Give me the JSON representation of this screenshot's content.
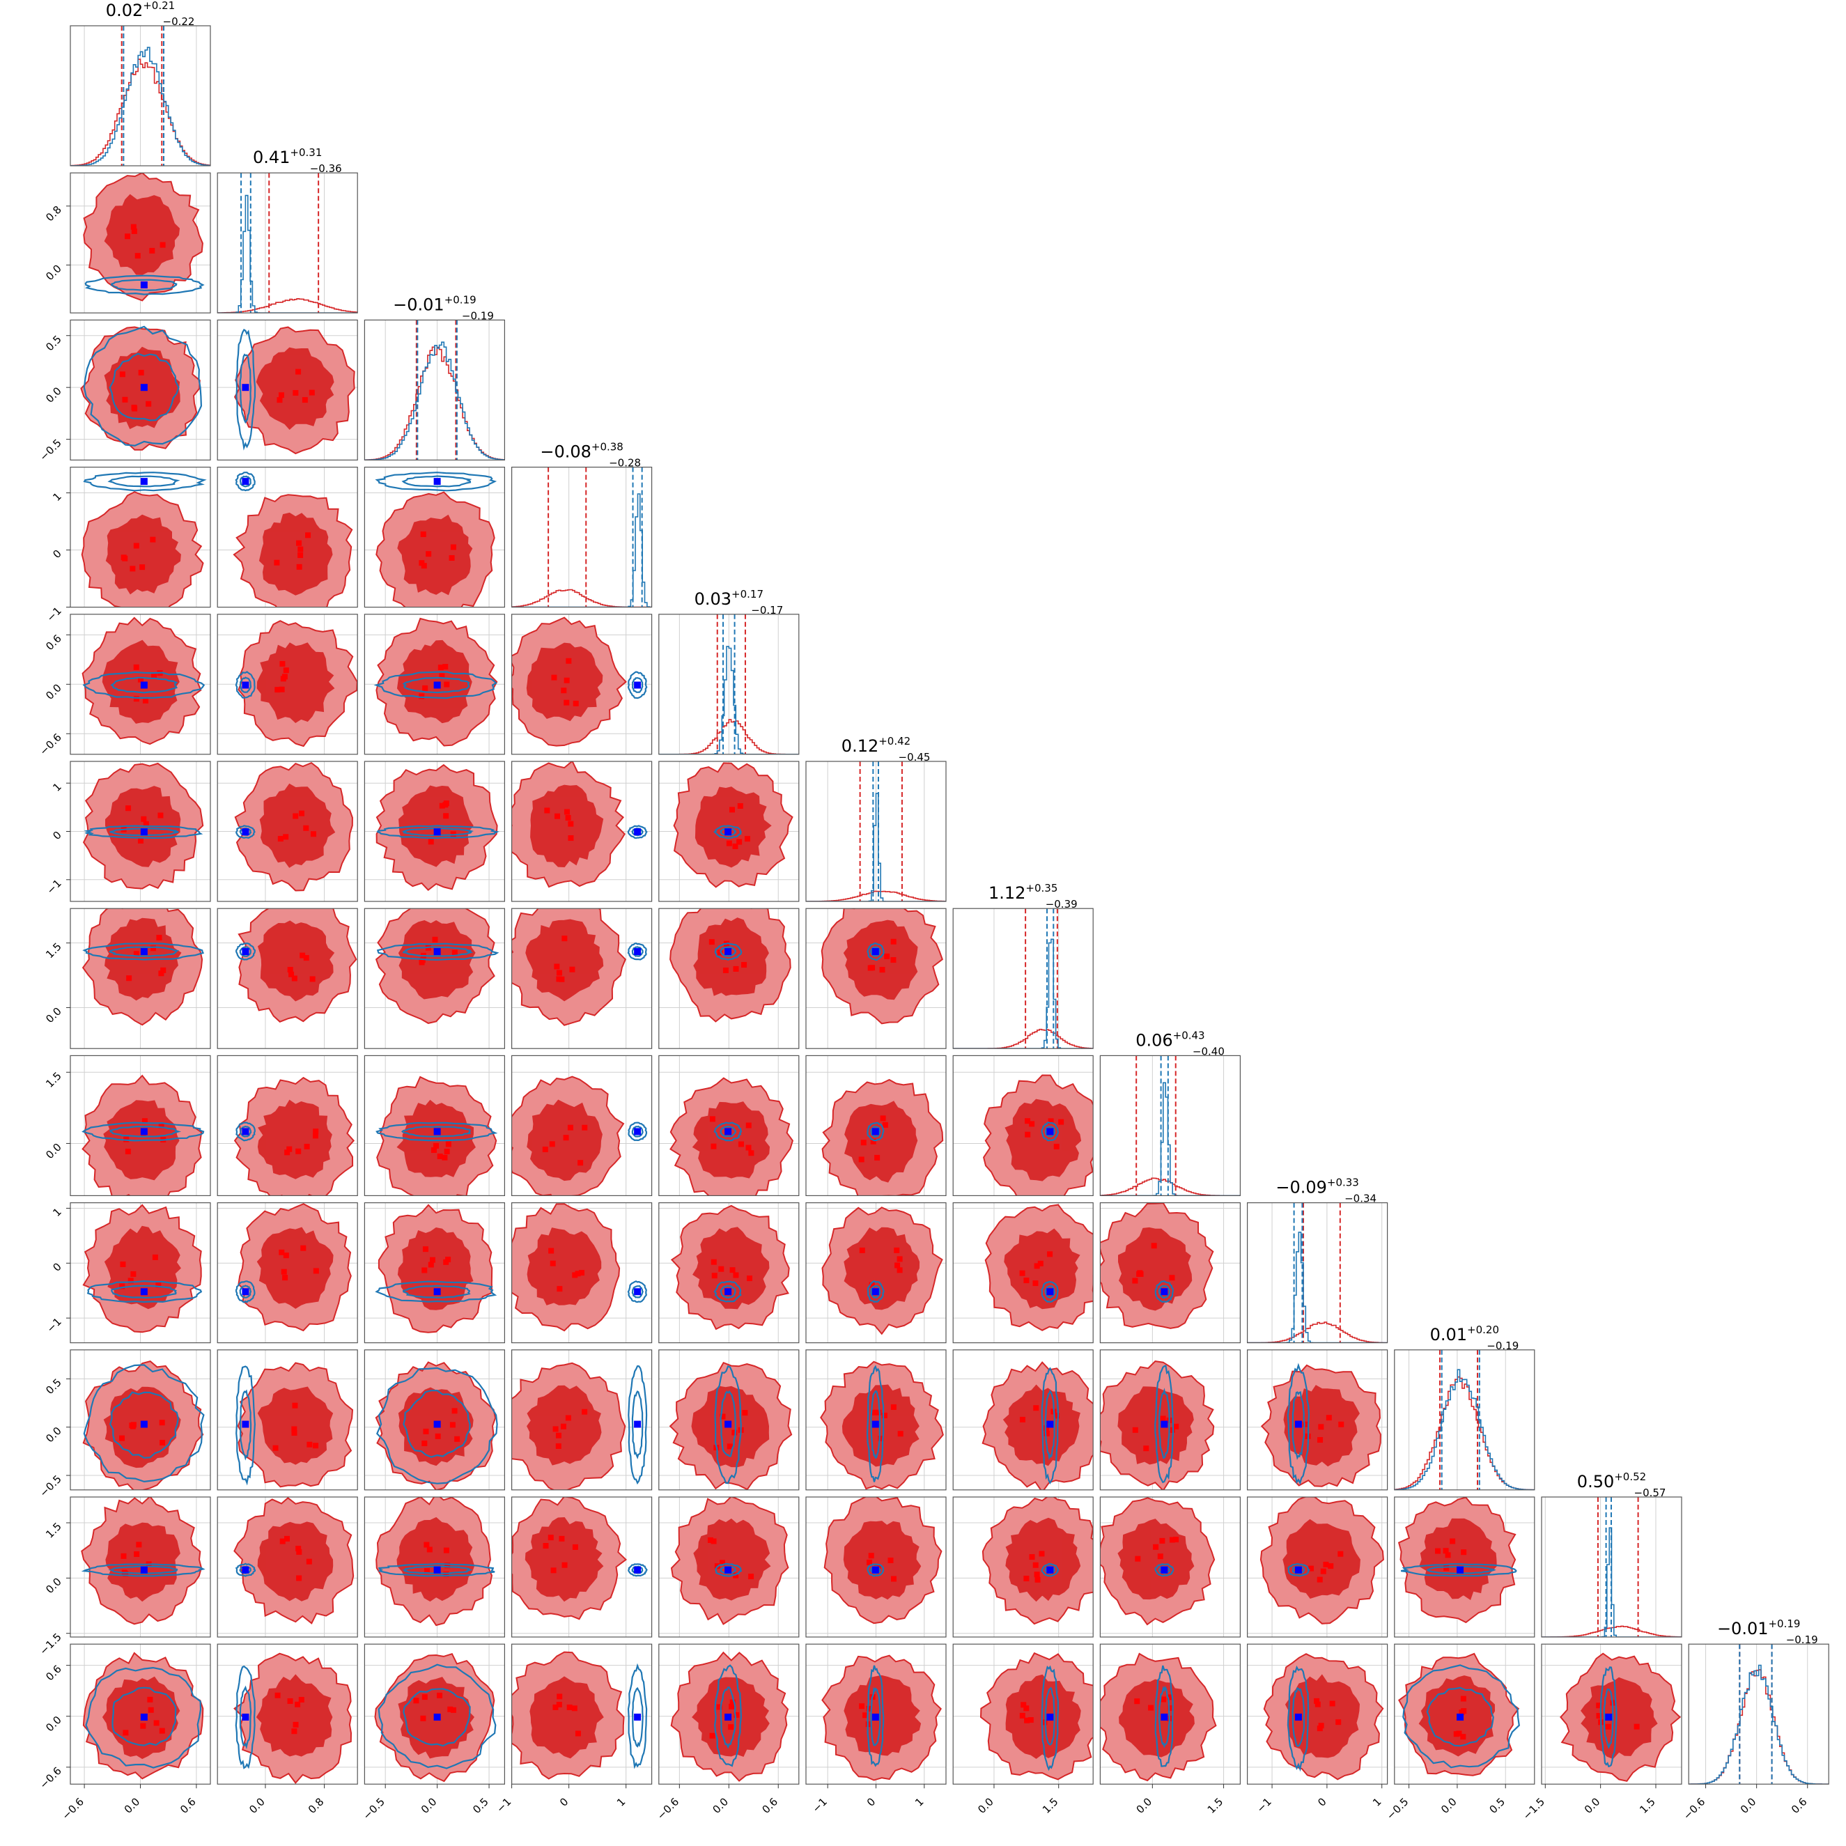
{
  "chart_data": {
    "type": "corner",
    "n_params": 12,
    "grid": true,
    "colors": {
      "red": "#d62728",
      "red_light": "#eb8d8e",
      "blue": "#1f77b4",
      "marker": "#0000ff"
    },
    "params": [
      {
        "median": "0.02",
        "plus": "+0.21",
        "minus": "−0.22",
        "range": [
          -0.75,
          0.75
        ],
        "ticks": [
          -0.6,
          0.0,
          0.6
        ],
        "tick_labels": [
          "−0.6",
          "0.0",
          "0.6"
        ],
        "red_c": 0.02,
        "red_s": 0.22,
        "red_q": [
          -0.2,
          0.23
        ],
        "blue_c": 0.04,
        "blue_s": 0.2,
        "blue_q": [
          -0.18,
          0.25
        ]
      },
      {
        "median": "0.41",
        "plus": "+0.31",
        "minus": "−0.36",
        "range": [
          -0.65,
          1.25
        ],
        "ticks": [
          0.0,
          0.8
        ],
        "tick_labels": [
          "0.0",
          "0.8"
        ],
        "red_c": 0.41,
        "red_s": 0.34,
        "red_q": [
          0.05,
          0.72
        ],
        "blue_c": -0.27,
        "blue_s": 0.04,
        "blue_q": [
          -0.33,
          -0.2
        ]
      },
      {
        "median": "−0.01",
        "plus": "+0.19",
        "minus": "−0.19",
        "range": [
          -0.7,
          0.65
        ],
        "ticks": [
          -0.5,
          0.0,
          0.5
        ],
        "tick_labels": [
          "−0.5",
          "0.0",
          "0.5"
        ],
        "red_c": -0.01,
        "red_s": 0.19,
        "red_q": [
          -0.2,
          0.18
        ],
        "blue_c": 0.0,
        "blue_s": 0.18,
        "blue_q": [
          -0.19,
          0.19
        ]
      },
      {
        "median": "−0.08",
        "plus": "+0.38",
        "minus": "−0.28",
        "range": [
          -1.0,
          1.45
        ],
        "ticks": [
          -1.0,
          0.0,
          1.0
        ],
        "tick_labels": [
          "−1",
          "0",
          "1"
        ],
        "red_c": -0.08,
        "red_s": 0.33,
        "red_q": [
          -0.36,
          0.3
        ],
        "blue_c": 1.2,
        "blue_s": 0.05,
        "blue_q": [
          1.12,
          1.28
        ]
      },
      {
        "median": "0.03",
        "plus": "+0.17",
        "minus": "−0.17",
        "range": [
          -0.85,
          0.85
        ],
        "ticks": [
          -0.6,
          0.0,
          0.6
        ],
        "tick_labels": [
          "−0.6",
          "0.0",
          "0.6"
        ],
        "red_c": 0.03,
        "red_s": 0.17,
        "red_q": [
          -0.14,
          0.2
        ],
        "blue_c": -0.01,
        "blue_s": 0.05,
        "blue_q": [
          -0.07,
          0.07
        ]
      },
      {
        "median": "0.12",
        "plus": "+0.42",
        "minus": "−0.45",
        "range": [
          -1.45,
          1.45
        ],
        "ticks": [
          -1.0,
          0.0,
          1.0
        ],
        "tick_labels": [
          "−1",
          "0",
          "1"
        ],
        "red_c": 0.12,
        "red_s": 0.44,
        "red_q": [
          -0.33,
          0.54
        ],
        "blue_c": -0.01,
        "blue_s": 0.04,
        "blue_q": [
          -0.06,
          0.05
        ]
      },
      {
        "median": "1.12",
        "plus": "+0.35",
        "minus": "−0.39",
        "range": [
          -0.95,
          2.3
        ],
        "ticks": [
          0.0,
          1.5
        ],
        "tick_labels": [
          "0.0",
          "1.5"
        ],
        "red_c": 1.12,
        "red_s": 0.37,
        "red_q": [
          0.73,
          1.47
        ],
        "blue_c": 1.3,
        "blue_s": 0.06,
        "blue_q": [
          1.23,
          1.38
        ]
      },
      {
        "median": "0.06",
        "plus": "+0.43",
        "minus": "−0.40",
        "range": [
          -1.1,
          1.85
        ],
        "ticks": [
          0.0,
          1.5
        ],
        "tick_labels": [
          "0.0",
          "1.5"
        ],
        "red_c": 0.06,
        "red_s": 0.41,
        "red_q": [
          -0.34,
          0.49
        ],
        "blue_c": 0.25,
        "blue_s": 0.06,
        "blue_q": [
          0.18,
          0.33
        ]
      },
      {
        "median": "−0.09",
        "plus": "+0.33",
        "minus": "−0.34",
        "range": [
          -1.45,
          1.1
        ],
        "ticks": [
          -1.0,
          0.0,
          1.0
        ],
        "tick_labels": [
          "−1",
          "0",
          "1"
        ],
        "red_c": -0.09,
        "red_s": 0.34,
        "red_q": [
          -0.43,
          0.24
        ],
        "blue_c": -0.52,
        "blue_s": 0.06,
        "blue_q": [
          -0.6,
          -0.45
        ]
      },
      {
        "median": "0.01",
        "plus": "+0.20",
        "minus": "−0.19",
        "range": [
          -0.65,
          0.8
        ],
        "ticks": [
          -0.5,
          0.0,
          0.5
        ],
        "tick_labels": [
          "−0.5",
          "0.0",
          "0.5"
        ],
        "red_c": 0.01,
        "red_s": 0.2,
        "red_q": [
          -0.18,
          0.21
        ],
        "blue_c": 0.03,
        "blue_s": 0.19,
        "blue_q": [
          -0.16,
          0.23
        ]
      },
      {
        "median": "0.50",
        "plus": "+0.52",
        "minus": "−0.57",
        "range": [
          -1.6,
          2.2
        ],
        "ticks": [
          -1.5,
          0.0,
          1.5
        ],
        "tick_labels": [
          "−1.5",
          "0.0",
          "1.5"
        ],
        "red_c": 0.5,
        "red_s": 0.55,
        "red_q": [
          -0.07,
          1.02
        ],
        "blue_c": 0.22,
        "blue_s": 0.05,
        "blue_q": [
          0.15,
          0.29
        ]
      },
      {
        "median": "−0.01",
        "plus": "+0.19",
        "minus": "−0.19",
        "range": [
          -0.8,
          0.85
        ],
        "ticks": [
          -0.6,
          0.0,
          0.6
        ],
        "tick_labels": [
          "−0.6",
          "0.0",
          "0.6"
        ],
        "red_c": -0.01,
        "red_s": 0.19,
        "red_q": [
          -0.2,
          0.18
        ],
        "blue_c": -0.01,
        "blue_s": 0.19,
        "blue_q": [
          -0.2,
          0.18
        ]
      }
    ]
  }
}
